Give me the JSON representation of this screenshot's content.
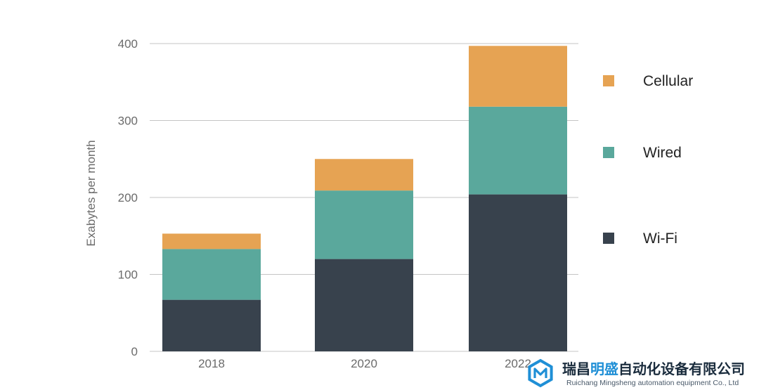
{
  "chart_data": {
    "type": "bar",
    "stacked": true,
    "categories": [
      "2018",
      "2020",
      "2022"
    ],
    "series": [
      {
        "name": "Wi-Fi",
        "values": [
          67,
          120,
          204
        ],
        "color": "#38424d"
      },
      {
        "name": "Wired",
        "values": [
          66,
          89,
          114
        ],
        "color": "#5aa89c"
      },
      {
        "name": "Cellular",
        "values": [
          20,
          41,
          79
        ],
        "color": "#e6a353"
      }
    ],
    "title": "",
    "xlabel": "",
    "ylabel": "Exabytes per month",
    "ylim": [
      0,
      400
    ],
    "yticks": [
      "0",
      "100",
      "200",
      "300",
      "400"
    ],
    "grid": true,
    "legend_position": "right",
    "legend_order": [
      "Cellular",
      "Wired",
      "Wi-Fi"
    ]
  },
  "watermark": {
    "cn_part1": "瑞昌",
    "cn_part2": "明盛",
    "cn_part3": "自动化设备有限公司",
    "en": "Ruichang Mingsheng automation equipment Co., Ltd",
    "logo_icon": "hexagon-m-logo-icon",
    "colors": {
      "accent": "#1f8fd6",
      "dark": "#1a2c3d"
    }
  }
}
